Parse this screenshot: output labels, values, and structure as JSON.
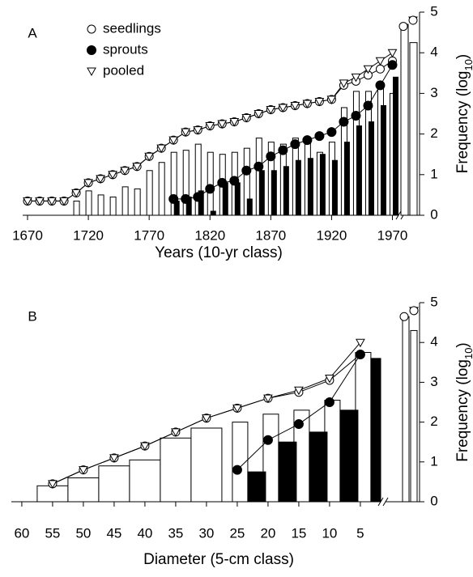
{
  "chart_data": [
    {
      "type": "bar_line",
      "panel_label": "A",
      "x_label": "Years (10-yr class)",
      "y_label": [
        "Frequency (log",
        "10",
        ")"
      ],
      "legend": true,
      "x": [
        1670,
        1680,
        1690,
        1700,
        1710,
        1720,
        1730,
        1740,
        1750,
        1760,
        1770,
        1780,
        1790,
        1800,
        1810,
        1820,
        1830,
        1840,
        1850,
        1860,
        1870,
        1880,
        1890,
        1900,
        1910,
        1920,
        1930,
        1940,
        1950,
        1960,
        1970
      ],
      "xlim": [
        1666,
        1975
      ],
      "xticks": [
        1670,
        1720,
        1770,
        1820,
        1870,
        1920,
        1970
      ],
      "ylim": [
        0,
        5
      ],
      "yticks": [
        0,
        1,
        2,
        3,
        4,
        5
      ],
      "series": [
        {
          "name": "seedlings",
          "marker": "open-circle",
          "bar_color": "#ffffff",
          "values": [
            0.35,
            0.35,
            0.35,
            0.35,
            0.55,
            0.8,
            0.9,
            1.0,
            1.1,
            1.2,
            1.45,
            1.65,
            1.85,
            2.05,
            2.1,
            2.2,
            2.25,
            2.3,
            2.4,
            2.5,
            2.6,
            2.65,
            2.7,
            2.75,
            2.8,
            2.85,
            3.2,
            3.3,
            3.45,
            3.6,
            3.8
          ],
          "bars": [
            null,
            null,
            null,
            null,
            0.35,
            0.6,
            0.5,
            0.45,
            0.7,
            0.65,
            1.1,
            1.3,
            1.55,
            1.6,
            1.75,
            1.55,
            1.5,
            1.55,
            1.65,
            1.9,
            1.8,
            1.75,
            1.9,
            1.8,
            1.55,
            1.8,
            2.65,
            3.05,
            3.05,
            3.15,
            3.0
          ]
        },
        {
          "name": "sprouts",
          "marker": "filled-circle",
          "bar_color": "#000000",
          "values": [
            null,
            null,
            null,
            null,
            null,
            null,
            null,
            null,
            null,
            null,
            null,
            null,
            0.4,
            0.4,
            0.45,
            0.65,
            0.8,
            0.85,
            1.1,
            1.2,
            1.45,
            1.6,
            1.75,
            1.85,
            1.95,
            2.05,
            2.3,
            2.45,
            2.7,
            3.2,
            3.7
          ],
          "bars": [
            null,
            null,
            null,
            null,
            null,
            null,
            null,
            null,
            null,
            null,
            null,
            null,
            0.35,
            0.45,
            0.6,
            0.1,
            0.8,
            0.8,
            0.4,
            1.1,
            1.1,
            1.2,
            1.35,
            1.4,
            1.5,
            1.35,
            1.8,
            2.2,
            2.3,
            2.7,
            3.4
          ]
        },
        {
          "name": "pooled",
          "marker": "triangle",
          "values": [
            0.35,
            0.35,
            0.35,
            0.35,
            0.55,
            0.8,
            0.9,
            1.0,
            1.1,
            1.2,
            1.45,
            1.65,
            1.85,
            2.05,
            2.1,
            2.2,
            2.25,
            2.3,
            2.4,
            2.5,
            2.6,
            2.65,
            2.7,
            2.75,
            2.8,
            2.85,
            3.25,
            3.4,
            3.6,
            3.8,
            4.0
          ]
        }
      ],
      "totals": {
        "bars": [
          4.7,
          4.25
        ],
        "points": [
          4.65,
          4.8
        ]
      }
    },
    {
      "type": "bar_line",
      "panel_label": "B",
      "x_label": "Diameter (5-cm class)",
      "y_label": [
        "Frequency (log",
        "10",
        ")"
      ],
      "legend": false,
      "x": [
        55,
        50,
        45,
        40,
        35,
        30,
        25,
        20,
        15,
        10,
        5
      ],
      "xlim": [
        61.7,
        1.7
      ],
      "xticks": [
        60,
        55,
        50,
        45,
        40,
        35,
        30,
        25,
        20,
        15,
        10,
        5
      ],
      "ylim": [
        0,
        5
      ],
      "yticks": [
        0,
        1,
        2,
        3,
        4,
        5
      ],
      "series": [
        {
          "name": "seedlings",
          "marker": "open-circle",
          "bar_color": "#ffffff",
          "values": [
            0.45,
            0.8,
            1.1,
            1.4,
            1.75,
            2.1,
            2.35,
            2.6,
            2.75,
            3.05,
            3.7
          ],
          "bars": [
            0.4,
            0.6,
            0.9,
            1.05,
            1.6,
            1.85,
            2.0,
            2.2,
            2.3,
            2.55,
            3.75
          ]
        },
        {
          "name": "sprouts",
          "marker": "filled-circle",
          "bar_color": "#000000",
          "values": [
            null,
            null,
            null,
            null,
            null,
            null,
            0.8,
            1.55,
            1.95,
            2.5,
            3.7
          ],
          "bars": [
            null,
            null,
            null,
            null,
            null,
            null,
            0.75,
            1.5,
            1.75,
            2.3,
            3.6
          ]
        },
        {
          "name": "pooled",
          "marker": "triangle",
          "values": [
            0.45,
            0.8,
            1.1,
            1.4,
            1.75,
            2.1,
            2.35,
            2.6,
            2.8,
            3.1,
            4.0
          ]
        }
      ],
      "totals": {
        "bars": [
          4.65,
          4.3
        ],
        "points": [
          4.65,
          4.8
        ]
      }
    }
  ]
}
